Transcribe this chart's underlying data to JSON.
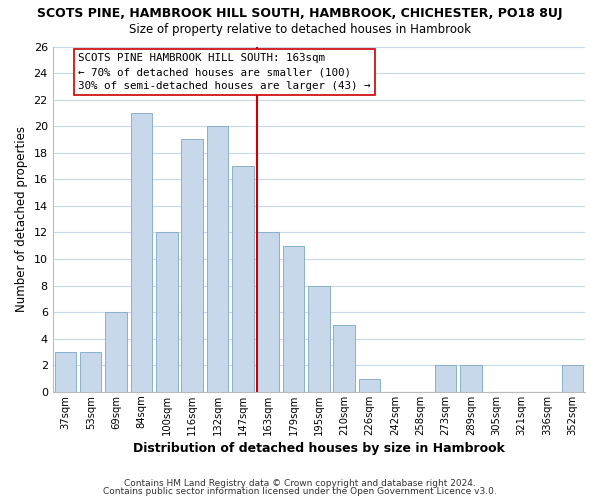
{
  "title": "SCOTS PINE, HAMBROOK HILL SOUTH, HAMBROOK, CHICHESTER, PO18 8UJ",
  "subtitle": "Size of property relative to detached houses in Hambrook",
  "xlabel": "Distribution of detached houses by size in Hambrook",
  "ylabel": "Number of detached properties",
  "bar_color": "#c8d8eb",
  "bar_edge_color": "#8ab0cc",
  "categories": [
    "37sqm",
    "53sqm",
    "69sqm",
    "84sqm",
    "100sqm",
    "116sqm",
    "132sqm",
    "147sqm",
    "163sqm",
    "179sqm",
    "195sqm",
    "210sqm",
    "226sqm",
    "242sqm",
    "258sqm",
    "273sqm",
    "289sqm",
    "305sqm",
    "321sqm",
    "336sqm",
    "352sqm"
  ],
  "values": [
    3,
    3,
    6,
    21,
    12,
    19,
    20,
    17,
    12,
    11,
    8,
    5,
    1,
    0,
    0,
    2,
    2,
    0,
    0,
    0,
    2
  ],
  "highlight_index": 8,
  "highlight_color": "#cc0000",
  "ylim": [
    0,
    26
  ],
  "yticks": [
    0,
    2,
    4,
    6,
    8,
    10,
    12,
    14,
    16,
    18,
    20,
    22,
    24,
    26
  ],
  "annotation_title": "SCOTS PINE HAMBROOK HILL SOUTH: 163sqm",
  "annotation_line1": "← 70% of detached houses are smaller (100)",
  "annotation_line2": "30% of semi-detached houses are larger (43) →",
  "footnote1": "Contains HM Land Registry data © Crown copyright and database right 2024.",
  "footnote2": "Contains public sector information licensed under the Open Government Licence v3.0.",
  "background_color": "#ffffff",
  "grid_color": "#c8d8e8"
}
